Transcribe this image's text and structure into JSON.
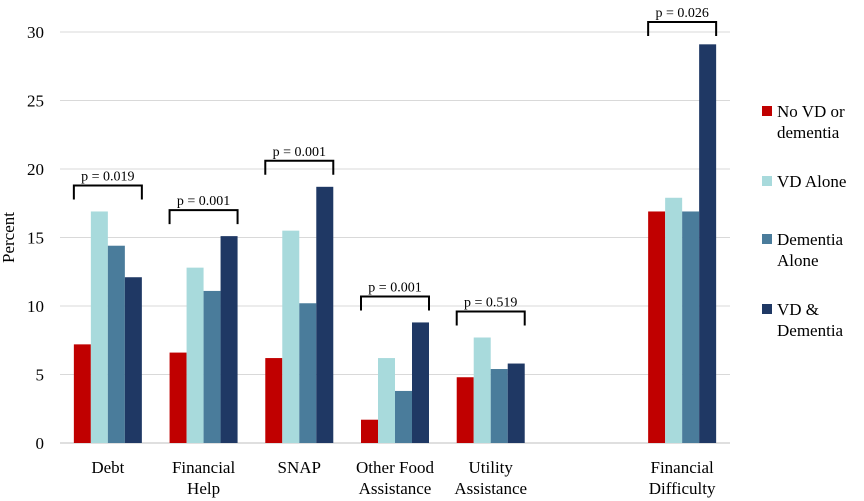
{
  "chart_data": {
    "type": "bar",
    "title": "",
    "xlabel": "",
    "ylabel": "Percent",
    "ylim": [
      0,
      30
    ],
    "yticks": [
      "0",
      "5",
      "10",
      "15",
      "20",
      "25",
      "30"
    ],
    "grid": true,
    "legend_position": "right",
    "categories": [
      {
        "lines": [
          "Debt"
        ],
        "p_label": "p = 0.019"
      },
      {
        "lines": [
          "Financial",
          "Help"
        ],
        "p_label": "p = 0.001"
      },
      {
        "lines": [
          "SNAP"
        ],
        "p_label": "p = 0.001"
      },
      {
        "lines": [
          "Other Food",
          "Assistance"
        ],
        "p_label": "p = 0.001"
      },
      {
        "lines": [
          "Utility",
          "Assistance"
        ],
        "p_label": "p = 0.519"
      },
      {
        "lines": [
          ""
        ],
        "p_label": ""
      },
      {
        "lines": [
          "Financial",
          "Difficulty"
        ],
        "p_label": "p = 0.026"
      }
    ],
    "series": [
      {
        "name_lines": [
          "No VD or",
          "dementia"
        ],
        "color": "#c00000",
        "values": [
          7.2,
          6.6,
          6.2,
          1.7,
          4.8,
          null,
          16.9
        ]
      },
      {
        "name_lines": [
          "VD Alone"
        ],
        "color": "#a8dadc",
        "values": [
          16.9,
          12.8,
          15.5,
          6.2,
          7.7,
          null,
          17.9
        ]
      },
      {
        "name_lines": [
          "Dementia",
          "Alone"
        ],
        "color": "#4a7c9b",
        "values": [
          14.4,
          11.1,
          10.2,
          3.8,
          5.4,
          null,
          16.9
        ]
      },
      {
        "name_lines": [
          "VD &",
          "Dementia"
        ],
        "color": "#1f3864",
        "values": [
          12.1,
          15.1,
          18.7,
          8.8,
          5.8,
          null,
          29.1
        ]
      }
    ]
  }
}
